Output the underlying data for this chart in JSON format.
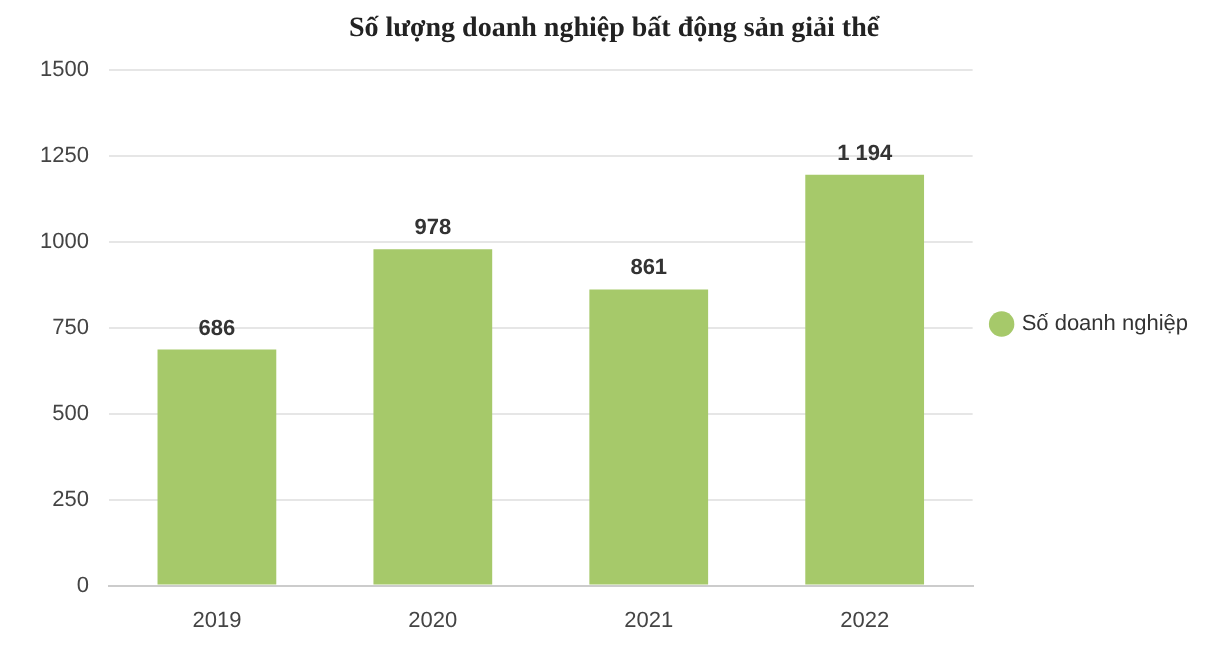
{
  "chart_data": {
    "type": "bar",
    "title": "Số lượng doanh nghiệp bất động sản giải thể",
    "categories": [
      "2019",
      "2020",
      "2021",
      "2022"
    ],
    "series": [
      {
        "name": "Số doanh nghiệp",
        "color": "#a6c96a",
        "values": [
          686,
          978,
          861,
          1194
        ],
        "value_labels": [
          "686",
          "978",
          "861",
          "1 194"
        ]
      }
    ],
    "ylim": [
      0,
      1500
    ],
    "yticks": [
      0,
      250,
      500,
      750,
      1000,
      1250,
      1500
    ],
    "grid": "y",
    "legend": "right"
  }
}
